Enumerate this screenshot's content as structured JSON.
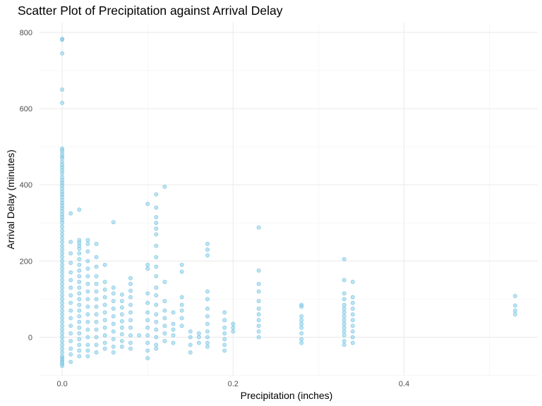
{
  "chart_data": {
    "type": "scatter",
    "title": "Scatter Plot of Precipitation against Arrival Delay",
    "xlabel": "Precipitation (inches)",
    "ylabel": "Arrival Delay (minutes)",
    "xlim": [
      -0.0265,
      0.5565
    ],
    "ylim": [
      -101,
      826
    ],
    "xticks": [
      0.0,
      0.2,
      0.4
    ],
    "xtick_labels": [
      "0.0",
      "0.2",
      "0.4"
    ],
    "yticks": [
      0,
      200,
      400,
      600,
      800
    ],
    "ytick_labels": [
      "0",
      "200",
      "400",
      "600",
      "800"
    ],
    "grid": true,
    "legend": "none",
    "point_color": "#87CEEB",
    "point_stroke": "#6fbfdc",
    "series": [
      {
        "points": [
          [
            0.0,
            783
          ],
          [
            0.0,
            781
          ],
          [
            0.0,
            745
          ],
          [
            0.0,
            650
          ],
          [
            0.0,
            615
          ],
          [
            0.0,
            495
          ],
          [
            0.0,
            490
          ],
          [
            0.0,
            482
          ],
          [
            0.0,
            475
          ],
          [
            0.0,
            470
          ],
          [
            0.0,
            460
          ],
          [
            0.0,
            452
          ],
          [
            0.0,
            445
          ],
          [
            0.0,
            438
          ],
          [
            0.0,
            430
          ],
          [
            0.0,
            420
          ],
          [
            0.0,
            412
          ],
          [
            0.0,
            405
          ],
          [
            0.0,
            398
          ],
          [
            0.0,
            390
          ],
          [
            0.0,
            382
          ],
          [
            0.0,
            375
          ],
          [
            0.0,
            368
          ],
          [
            0.0,
            360
          ],
          [
            0.0,
            352
          ],
          [
            0.0,
            345
          ],
          [
            0.0,
            338
          ],
          [
            0.0,
            330
          ],
          [
            0.0,
            322
          ],
          [
            0.0,
            315
          ],
          [
            0.0,
            308
          ],
          [
            0.0,
            300
          ],
          [
            0.0,
            290
          ],
          [
            0.0,
            280
          ],
          [
            0.0,
            270
          ],
          [
            0.0,
            260
          ],
          [
            0.0,
            250
          ],
          [
            0.0,
            240
          ],
          [
            0.0,
            230
          ],
          [
            0.0,
            220
          ],
          [
            0.0,
            210
          ],
          [
            0.0,
            200
          ],
          [
            0.0,
            190
          ],
          [
            0.0,
            180
          ],
          [
            0.0,
            170
          ],
          [
            0.0,
            160
          ],
          [
            0.0,
            150
          ],
          [
            0.0,
            140
          ],
          [
            0.0,
            130
          ],
          [
            0.0,
            120
          ],
          [
            0.0,
            110
          ],
          [
            0.0,
            100
          ],
          [
            0.0,
            90
          ],
          [
            0.0,
            80
          ],
          [
            0.0,
            70
          ],
          [
            0.0,
            60
          ],
          [
            0.0,
            50
          ],
          [
            0.0,
            40
          ],
          [
            0.0,
            30
          ],
          [
            0.0,
            20
          ],
          [
            0.0,
            10
          ],
          [
            0.0,
            0
          ],
          [
            0.0,
            -10
          ],
          [
            0.0,
            -20
          ],
          [
            0.0,
            -30
          ],
          [
            0.0,
            -40
          ],
          [
            0.0,
            -50
          ],
          [
            0.0,
            -55
          ],
          [
            0.0,
            -60
          ],
          [
            0.0,
            -65
          ],
          [
            0.0,
            -70
          ],
          [
            0.0,
            -75
          ],
          [
            0.01,
            325
          ],
          [
            0.01,
            250
          ],
          [
            0.01,
            220
          ],
          [
            0.01,
            195
          ],
          [
            0.01,
            170
          ],
          [
            0.01,
            150
          ],
          [
            0.01,
            130
          ],
          [
            0.01,
            110
          ],
          [
            0.01,
            90
          ],
          [
            0.01,
            70
          ],
          [
            0.01,
            50
          ],
          [
            0.01,
            30
          ],
          [
            0.01,
            10
          ],
          [
            0.01,
            -10
          ],
          [
            0.01,
            -30
          ],
          [
            0.01,
            -45
          ],
          [
            0.01,
            -65
          ],
          [
            0.02,
            335
          ],
          [
            0.02,
            255
          ],
          [
            0.02,
            248
          ],
          [
            0.02,
            240
          ],
          [
            0.02,
            232
          ],
          [
            0.02,
            220
          ],
          [
            0.02,
            205
          ],
          [
            0.02,
            190
          ],
          [
            0.02,
            175
          ],
          [
            0.02,
            160
          ],
          [
            0.02,
            145
          ],
          [
            0.02,
            130
          ],
          [
            0.02,
            115
          ],
          [
            0.02,
            100
          ],
          [
            0.02,
            85
          ],
          [
            0.02,
            70
          ],
          [
            0.02,
            55
          ],
          [
            0.02,
            40
          ],
          [
            0.02,
            25
          ],
          [
            0.02,
            10
          ],
          [
            0.02,
            -5
          ],
          [
            0.02,
            -20
          ],
          [
            0.02,
            -35
          ],
          [
            0.02,
            -50
          ],
          [
            0.03,
            255
          ],
          [
            0.03,
            245
          ],
          [
            0.03,
            225
          ],
          [
            0.03,
            200
          ],
          [
            0.03,
            180
          ],
          [
            0.03,
            160
          ],
          [
            0.03,
            140
          ],
          [
            0.03,
            120
          ],
          [
            0.03,
            100
          ],
          [
            0.03,
            80
          ],
          [
            0.03,
            60
          ],
          [
            0.03,
            40
          ],
          [
            0.03,
            20
          ],
          [
            0.03,
            0
          ],
          [
            0.03,
            -20
          ],
          [
            0.03,
            -35
          ],
          [
            0.03,
            -50
          ],
          [
            0.04,
            245
          ],
          [
            0.04,
            210
          ],
          [
            0.04,
            185
          ],
          [
            0.04,
            160
          ],
          [
            0.04,
            140
          ],
          [
            0.04,
            120
          ],
          [
            0.04,
            100
          ],
          [
            0.04,
            80
          ],
          [
            0.04,
            60
          ],
          [
            0.04,
            40
          ],
          [
            0.04,
            20
          ],
          [
            0.04,
            0
          ],
          [
            0.04,
            -20
          ],
          [
            0.04,
            -40
          ],
          [
            0.05,
            190
          ],
          [
            0.05,
            145
          ],
          [
            0.05,
            125
          ],
          [
            0.05,
            105
          ],
          [
            0.05,
            85
          ],
          [
            0.05,
            65
          ],
          [
            0.05,
            45
          ],
          [
            0.05,
            25
          ],
          [
            0.05,
            5
          ],
          [
            0.05,
            -15
          ],
          [
            0.05,
            -30
          ],
          [
            0.06,
            302
          ],
          [
            0.06,
            130
          ],
          [
            0.06,
            115
          ],
          [
            0.06,
            95
          ],
          [
            0.06,
            75
          ],
          [
            0.06,
            55
          ],
          [
            0.06,
            35
          ],
          [
            0.06,
            15
          ],
          [
            0.06,
            -5
          ],
          [
            0.06,
            -25
          ],
          [
            0.06,
            -40
          ],
          [
            0.07,
            112
          ],
          [
            0.07,
            95
          ],
          [
            0.07,
            78
          ],
          [
            0.07,
            60
          ],
          [
            0.07,
            42
          ],
          [
            0.07,
            25
          ],
          [
            0.07,
            8
          ],
          [
            0.07,
            -10
          ],
          [
            0.07,
            -25
          ],
          [
            0.08,
            155
          ],
          [
            0.08,
            140
          ],
          [
            0.08,
            122
          ],
          [
            0.08,
            105
          ],
          [
            0.08,
            85
          ],
          [
            0.08,
            65
          ],
          [
            0.08,
            45
          ],
          [
            0.08,
            25
          ],
          [
            0.08,
            5
          ],
          [
            0.08,
            -15
          ],
          [
            0.08,
            -30
          ],
          [
            0.09,
            5
          ],
          [
            0.1,
            350
          ],
          [
            0.1,
            190
          ],
          [
            0.1,
            180
          ],
          [
            0.1,
            115
          ],
          [
            0.1,
            90
          ],
          [
            0.1,
            65
          ],
          [
            0.1,
            45
          ],
          [
            0.1,
            25
          ],
          [
            0.1,
            5
          ],
          [
            0.1,
            -15
          ],
          [
            0.1,
            -35
          ],
          [
            0.1,
            -55
          ],
          [
            0.11,
            375
          ],
          [
            0.11,
            340
          ],
          [
            0.11,
            315
          ],
          [
            0.11,
            300
          ],
          [
            0.11,
            285
          ],
          [
            0.11,
            270
          ],
          [
            0.11,
            240
          ],
          [
            0.11,
            210
          ],
          [
            0.11,
            185
          ],
          [
            0.11,
            160
          ],
          [
            0.11,
            130
          ],
          [
            0.11,
            110
          ],
          [
            0.11,
            85
          ],
          [
            0.11,
            60
          ],
          [
            0.11,
            40
          ],
          [
            0.11,
            20
          ],
          [
            0.11,
            0
          ],
          [
            0.11,
            -20
          ],
          [
            0.11,
            -30
          ],
          [
            0.12,
            395
          ],
          [
            0.12,
            145
          ],
          [
            0.12,
            95
          ],
          [
            0.12,
            70
          ],
          [
            0.12,
            50
          ],
          [
            0.12,
            30
          ],
          [
            0.12,
            10
          ],
          [
            0.12,
            -10
          ],
          [
            0.13,
            65
          ],
          [
            0.13,
            35
          ],
          [
            0.13,
            20
          ],
          [
            0.13,
            5
          ],
          [
            0.13,
            -15
          ],
          [
            0.14,
            190
          ],
          [
            0.14,
            172
          ],
          [
            0.14,
            105
          ],
          [
            0.14,
            85
          ],
          [
            0.14,
            70
          ],
          [
            0.14,
            50
          ],
          [
            0.14,
            30
          ],
          [
            0.15,
            15
          ],
          [
            0.15,
            0
          ],
          [
            0.15,
            -20
          ],
          [
            0.15,
            -40
          ],
          [
            0.16,
            10
          ],
          [
            0.16,
            0
          ],
          [
            0.16,
            -15
          ],
          [
            0.17,
            245
          ],
          [
            0.17,
            230
          ],
          [
            0.17,
            215
          ],
          [
            0.17,
            120
          ],
          [
            0.17,
            100
          ],
          [
            0.17,
            75
          ],
          [
            0.17,
            55
          ],
          [
            0.17,
            35
          ],
          [
            0.17,
            15
          ],
          [
            0.17,
            0
          ],
          [
            0.17,
            -15
          ],
          [
            0.17,
            -25
          ],
          [
            0.19,
            65
          ],
          [
            0.19,
            45
          ],
          [
            0.19,
            25
          ],
          [
            0.19,
            10
          ],
          [
            0.19,
            -5
          ],
          [
            0.19,
            -20
          ],
          [
            0.19,
            -35
          ],
          [
            0.2,
            35
          ],
          [
            0.2,
            25
          ],
          [
            0.2,
            15
          ],
          [
            0.23,
            288
          ],
          [
            0.23,
            175
          ],
          [
            0.23,
            140
          ],
          [
            0.23,
            120
          ],
          [
            0.23,
            95
          ],
          [
            0.23,
            75
          ],
          [
            0.23,
            60
          ],
          [
            0.23,
            45
          ],
          [
            0.23,
            30
          ],
          [
            0.23,
            15
          ],
          [
            0.23,
            0
          ],
          [
            0.28,
            85
          ],
          [
            0.28,
            80
          ],
          [
            0.28,
            55
          ],
          [
            0.28,
            45
          ],
          [
            0.28,
            35
          ],
          [
            0.28,
            25
          ],
          [
            0.28,
            10
          ],
          [
            0.28,
            -5
          ],
          [
            0.28,
            -15
          ],
          [
            0.33,
            205
          ],
          [
            0.33,
            150
          ],
          [
            0.33,
            115
          ],
          [
            0.33,
            100
          ],
          [
            0.33,
            85
          ],
          [
            0.33,
            75
          ],
          [
            0.33,
            65
          ],
          [
            0.33,
            55
          ],
          [
            0.33,
            45
          ],
          [
            0.33,
            35
          ],
          [
            0.33,
            25
          ],
          [
            0.33,
            15
          ],
          [
            0.33,
            5
          ],
          [
            0.33,
            -10
          ],
          [
            0.33,
            -20
          ],
          [
            0.34,
            145
          ],
          [
            0.34,
            105
          ],
          [
            0.34,
            90
          ],
          [
            0.34,
            75
          ],
          [
            0.34,
            60
          ],
          [
            0.34,
            45
          ],
          [
            0.34,
            30
          ],
          [
            0.34,
            15
          ],
          [
            0.34,
            0
          ],
          [
            0.34,
            -15
          ],
          [
            0.53,
            108
          ],
          [
            0.53,
            83
          ],
          [
            0.53,
            70
          ],
          [
            0.53,
            60
          ]
        ]
      }
    ]
  }
}
